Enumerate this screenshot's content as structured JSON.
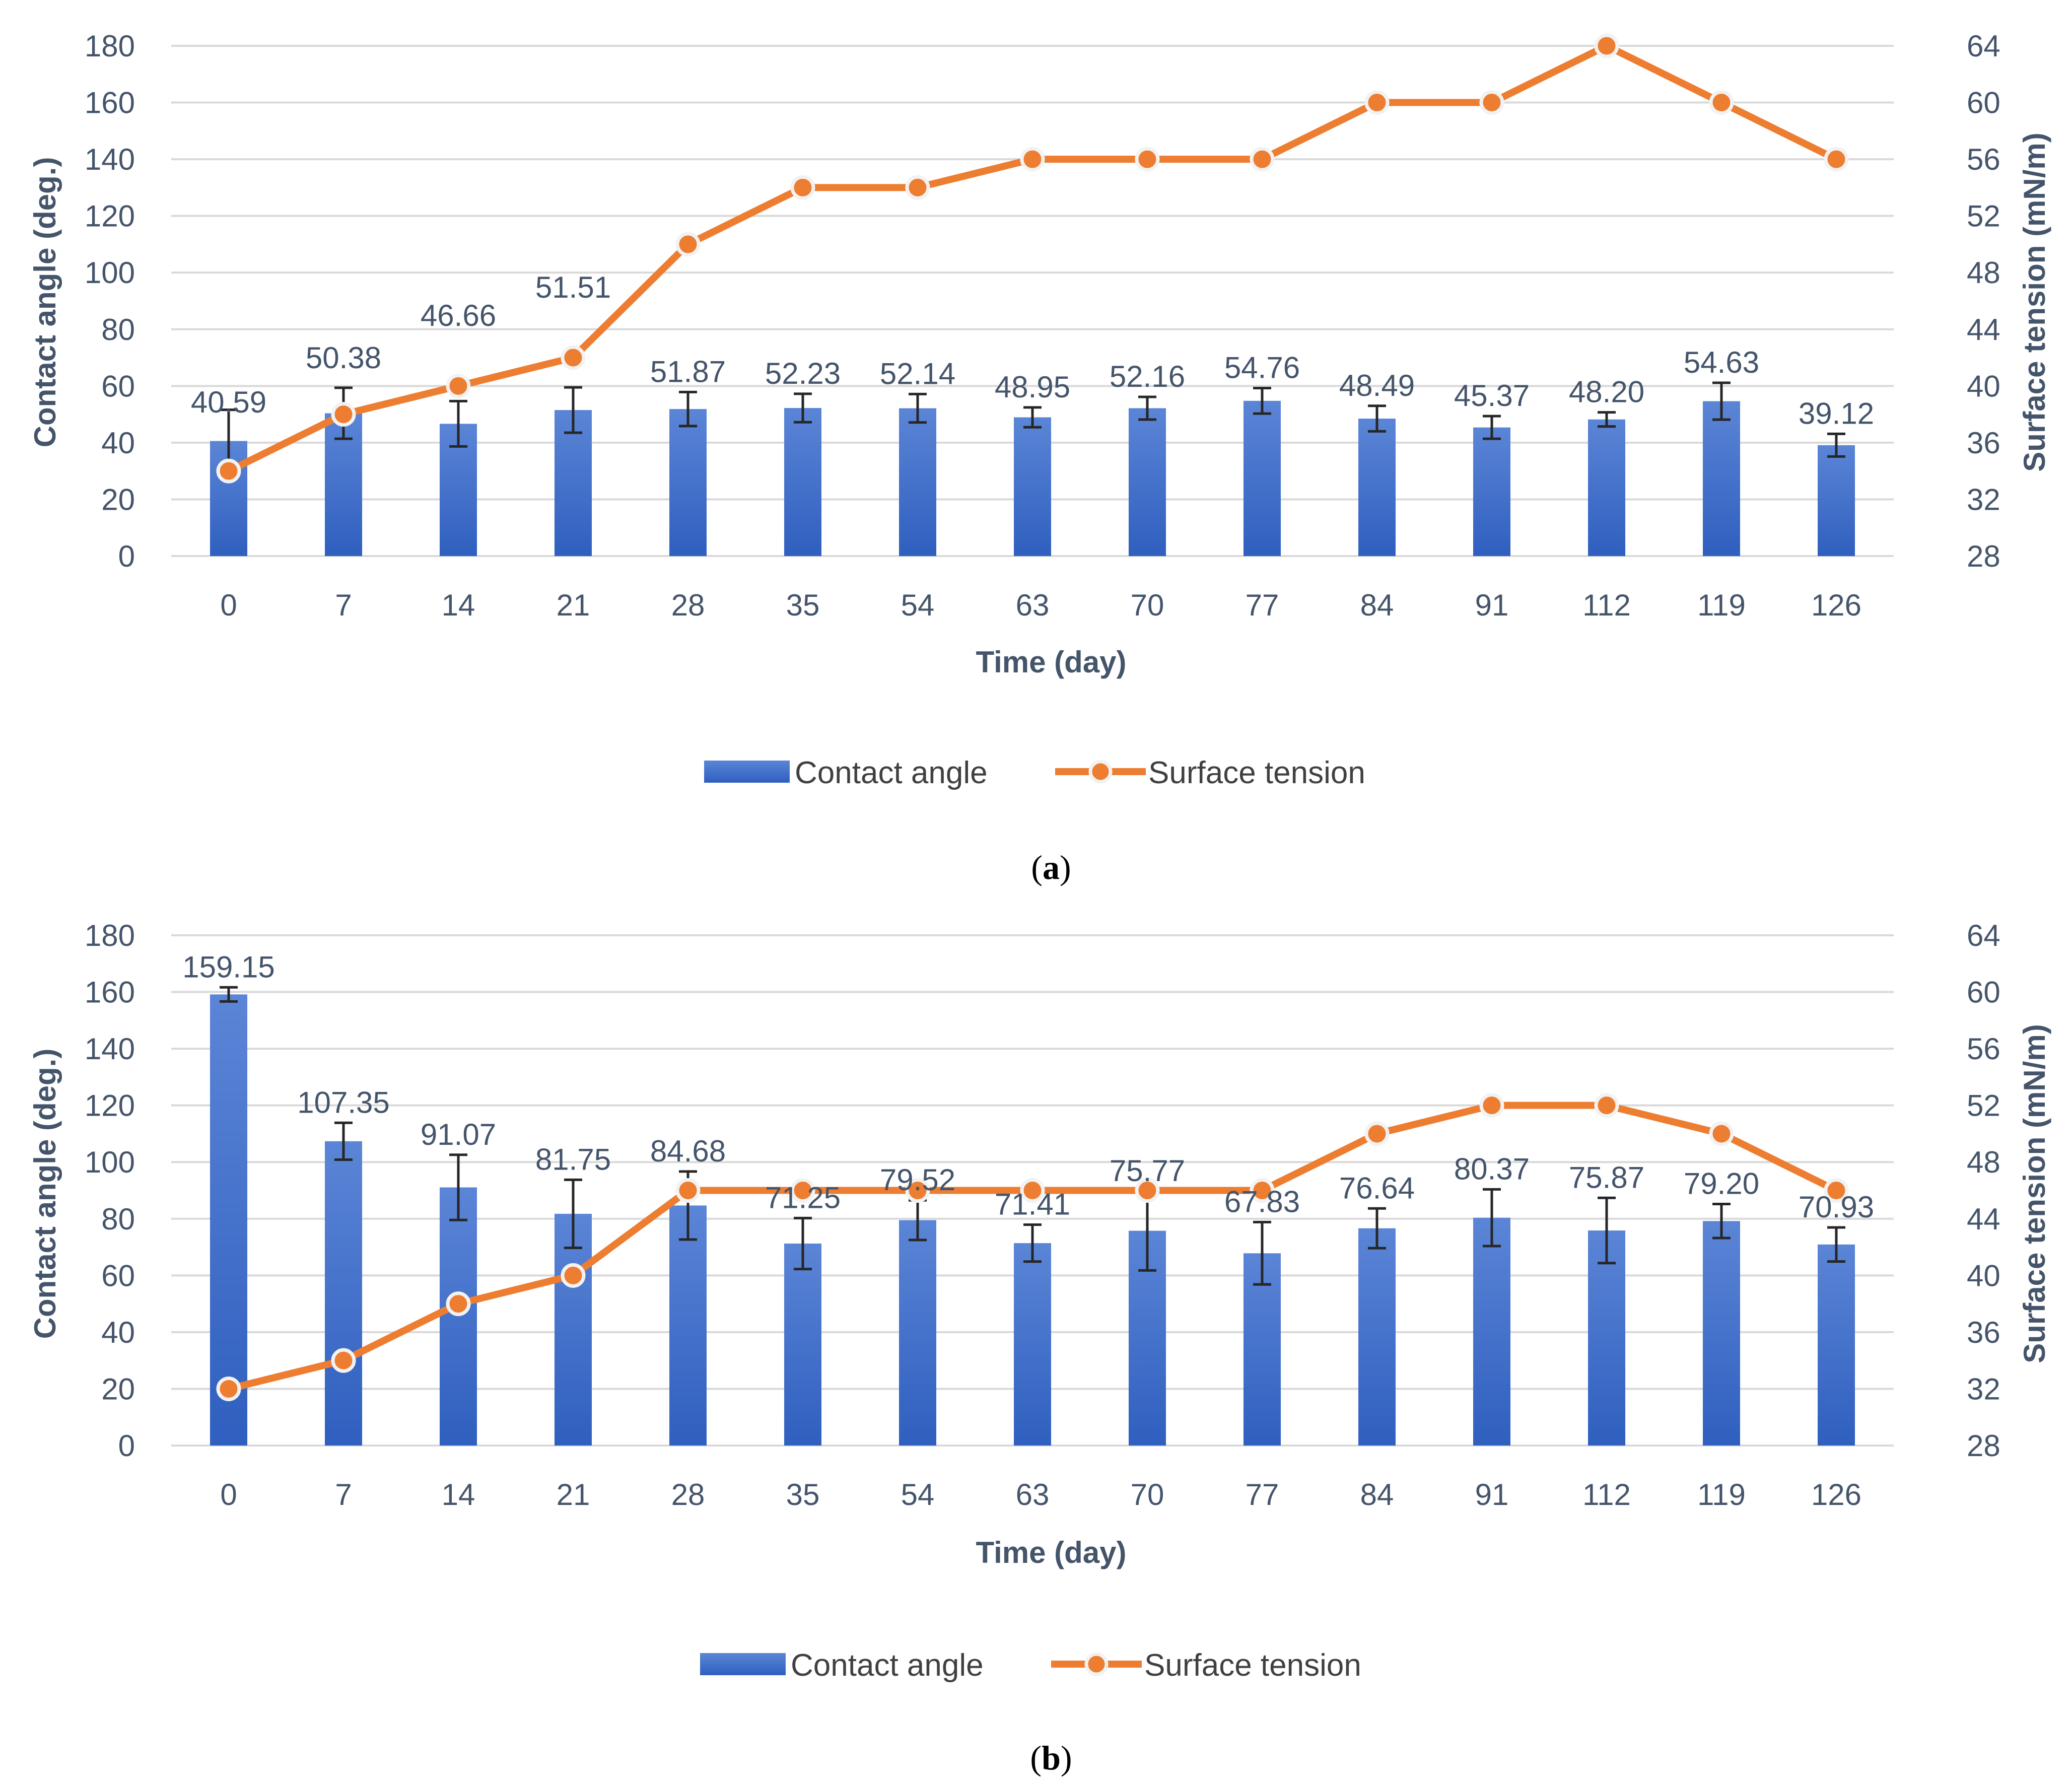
{
  "colors": {
    "bar_top": "#5b85d6",
    "bar_bottom": "#2f5fbf",
    "line": "#ed7d31",
    "marker_edge": "#f2f2f2",
    "text": "#44546a",
    "grid": "#d9d9d9"
  },
  "chart_data": [
    {
      "type": "bar+line",
      "panel_label": "a",
      "categories": [
        "0",
        "7",
        "14",
        "21",
        "28",
        "35",
        "54",
        "63",
        "70",
        "77",
        "84",
        "91",
        "112",
        "119",
        "126"
      ],
      "xlabel": "Time (day)",
      "ylabel": "Contact angle (deg.)",
      "y2label": "Surface tension (mN/m)",
      "ylim": [
        0,
        180
      ],
      "yticks": [
        "0",
        "20",
        "40",
        "60",
        "80",
        "100",
        "120",
        "140",
        "160",
        "180"
      ],
      "y2lim": [
        28,
        64
      ],
      "y2ticks": [
        "28",
        "32",
        "36",
        "40",
        "44",
        "48",
        "52",
        "56",
        "60",
        "64"
      ],
      "series": [
        {
          "name": "Contact angle",
          "kind": "bar",
          "values": [
            40.59,
            50.38,
            46.66,
            51.51,
            51.87,
            52.23,
            52.14,
            48.95,
            52.16,
            54.76,
            48.49,
            45.37,
            48.2,
            54.63,
            39.12
          ],
          "labels": [
            "40.59",
            "50.38",
            "46.66",
            "51.51",
            "51.87",
            "52.23",
            "52.14",
            "48.95",
            "52.16",
            "54.76",
            "48.49",
            "45.37",
            "48.20",
            "54.63",
            "39.12"
          ],
          "errors": [
            11,
            9,
            8,
            8,
            6,
            5,
            5,
            3.5,
            4,
            4.5,
            4.5,
            4,
            2.5,
            6.5,
            4
          ]
        },
        {
          "name": "Surface tension",
          "kind": "line",
          "axis": "right",
          "values": [
            34,
            38,
            40,
            42,
            50,
            54,
            54,
            56,
            56,
            56,
            60,
            60,
            64,
            60,
            56
          ]
        }
      ],
      "legend": "bottom"
    },
    {
      "type": "bar+line",
      "panel_label": "b",
      "categories": [
        "0",
        "7",
        "14",
        "21",
        "28",
        "35",
        "54",
        "63",
        "70",
        "77",
        "84",
        "91",
        "112",
        "119",
        "126"
      ],
      "xlabel": "Time (day)",
      "ylabel": "Contact angle (deg.)",
      "y2label": "Surface tension (mN/m)",
      "ylim": [
        0,
        180
      ],
      "yticks": [
        "0",
        "20",
        "40",
        "60",
        "80",
        "100",
        "120",
        "140",
        "160",
        "180"
      ],
      "y2lim": [
        28,
        64
      ],
      "y2ticks": [
        "28",
        "32",
        "36",
        "40",
        "44",
        "48",
        "52",
        "56",
        "60",
        "64"
      ],
      "series": [
        {
          "name": "Contact angle",
          "kind": "bar",
          "values": [
            159.15,
            107.35,
            91.07,
            81.75,
            84.68,
            71.25,
            79.52,
            71.41,
            75.77,
            67.83,
            76.64,
            80.37,
            75.87,
            79.2,
            70.93
          ],
          "labels": [
            "159.15",
            "107.35",
            "91.07",
            "81.75",
            "84.68",
            "71.25",
            "79.52",
            "71.41",
            "75.77",
            "67.83",
            "76.64",
            "80.37",
            "75.87",
            "79.20",
            "70.93"
          ],
          "errors": [
            2.5,
            6.5,
            11.5,
            12,
            12,
            9,
            7,
            6.5,
            14,
            11,
            7,
            10,
            11.5,
            6,
            6
          ]
        },
        {
          "name": "Surface tension",
          "kind": "line",
          "axis": "right",
          "values": [
            32,
            34,
            38,
            40,
            46,
            46,
            46,
            46,
            46,
            46,
            50,
            52,
            52,
            50,
            46
          ]
        }
      ],
      "legend": "bottom"
    }
  ]
}
